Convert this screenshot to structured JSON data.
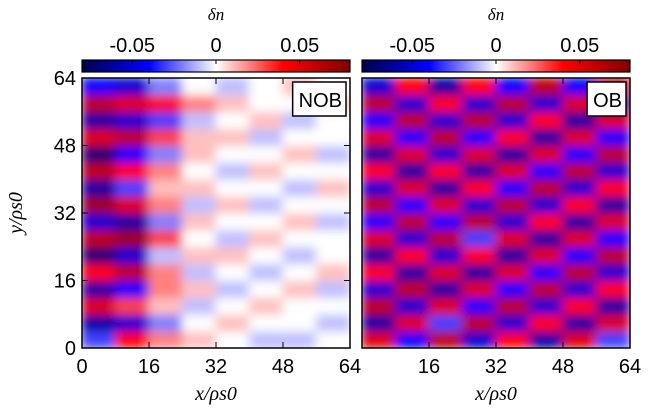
{
  "chart_data": [
    {
      "type": "heatmap",
      "label": "NOB",
      "xlabel": "x/ρs0",
      "ylabel": "y/ρs0",
      "xlim": [
        0,
        64
      ],
      "ylim": [
        0,
        64
      ],
      "xticks": [
        0,
        16,
        32,
        48,
        64
      ],
      "yticks": [
        0,
        16,
        32,
        48,
        64
      ],
      "colorbar": {
        "label": "δn",
        "clim": [
          -0.08,
          0.08
        ],
        "ticks": [
          -0.05,
          0,
          0.05
        ]
      },
      "colormap": [
        "#00004c",
        "#0000ff",
        "#ffffff",
        "#ff0000",
        "#800000"
      ],
      "z": [
        [
          -0.03,
          0.04,
          0.02,
          0.01,
          0.0,
          -0.01,
          -0.01,
          0.0
        ],
        [
          -0.06,
          -0.05,
          -0.02,
          0.0,
          0.01,
          0.0,
          0.0,
          -0.01
        ],
        [
          0.05,
          0.03,
          0.01,
          -0.01,
          0.0,
          0.01,
          0.0,
          0.0
        ],
        [
          -0.06,
          -0.04,
          0.02,
          0.01,
          -0.01,
          0.0,
          0.01,
          -0.01
        ],
        [
          0.04,
          0.06,
          0.02,
          -0.01,
          0.0,
          -0.01,
          0.0,
          0.01
        ],
        [
          -0.07,
          -0.05,
          -0.01,
          0.01,
          0.01,
          0.0,
          -0.01,
          0.0
        ],
        [
          0.06,
          0.07,
          0.03,
          0.0,
          -0.01,
          0.01,
          0.0,
          0.0
        ],
        [
          -0.05,
          -0.06,
          -0.02,
          0.01,
          0.0,
          0.0,
          0.01,
          -0.01
        ],
        [
          0.07,
          0.05,
          0.02,
          -0.01,
          0.01,
          -0.01,
          0.0,
          0.0
        ],
        [
          -0.06,
          -0.03,
          0.01,
          0.01,
          0.0,
          0.0,
          -0.01,
          0.01
        ],
        [
          0.06,
          0.04,
          0.02,
          0.0,
          -0.01,
          0.01,
          0.0,
          0.0
        ],
        [
          -0.07,
          -0.04,
          -0.02,
          0.01,
          0.0,
          0.0,
          0.01,
          -0.01
        ],
        [
          0.05,
          0.06,
          0.03,
          0.01,
          0.01,
          -0.01,
          0.0,
          0.0
        ],
        [
          -0.06,
          -0.05,
          -0.03,
          -0.01,
          0.0,
          0.01,
          -0.01,
          0.0
        ],
        [
          0.06,
          0.05,
          0.04,
          0.02,
          0.01,
          0.0,
          0.0,
          0.01
        ],
        [
          -0.04,
          -0.05,
          -0.02,
          0.0,
          -0.01,
          0.0,
          0.01,
          0.0
        ]
      ]
    },
    {
      "type": "heatmap",
      "label": "OB",
      "xlabel": "x/ρs0",
      "xlim": [
        0,
        64
      ],
      "ylim": [
        0,
        64
      ],
      "xticks": [
        16,
        32,
        48,
        64
      ],
      "colorbar": {
        "label": "δn",
        "clim": [
          -0.08,
          0.08
        ],
        "ticks": [
          -0.05,
          0,
          0.05
        ]
      },
      "colormap": [
        "#00004c",
        "#0000ff",
        "#ffffff",
        "#ff0000",
        "#800000"
      ],
      "z": [
        [
          0.05,
          -0.04,
          0.06,
          -0.05,
          0.04,
          -0.06,
          0.05,
          -0.03
        ],
        [
          -0.06,
          0.05,
          -0.03,
          0.06,
          -0.05,
          0.04,
          -0.06,
          0.05
        ],
        [
          0.06,
          -0.05,
          0.05,
          -0.04,
          0.06,
          -0.05,
          0.04,
          -0.06
        ],
        [
          -0.05,
          0.06,
          -0.06,
          0.05,
          -0.04,
          0.06,
          -0.05,
          0.04
        ],
        [
          0.04,
          -0.06,
          0.05,
          -0.06,
          0.05,
          -0.04,
          0.06,
          -0.05
        ],
        [
          -0.06,
          0.04,
          -0.05,
          0.04,
          -0.06,
          0.05,
          -0.04,
          0.06
        ],
        [
          0.05,
          -0.05,
          0.06,
          -0.03,
          0.05,
          -0.06,
          0.05,
          -0.04
        ],
        [
          -0.04,
          0.06,
          -0.04,
          0.06,
          -0.05,
          0.04,
          -0.06,
          0.05
        ],
        [
          0.06,
          -0.04,
          0.05,
          -0.05,
          0.06,
          -0.05,
          0.04,
          -0.06
        ],
        [
          -0.05,
          0.05,
          -0.06,
          0.04,
          -0.04,
          0.06,
          -0.05,
          0.04
        ],
        [
          0.04,
          -0.06,
          0.04,
          -0.06,
          0.05,
          -0.04,
          0.06,
          -0.05
        ],
        [
          -0.06,
          0.05,
          -0.05,
          0.05,
          -0.06,
          0.05,
          -0.04,
          0.06
        ],
        [
          0.05,
          -0.04,
          0.06,
          -0.04,
          0.04,
          -0.06,
          0.05,
          -0.04
        ],
        [
          -0.04,
          0.06,
          -0.05,
          0.06,
          -0.05,
          0.04,
          -0.06,
          0.05
        ],
        [
          0.06,
          -0.05,
          0.04,
          -0.05,
          0.06,
          -0.05,
          0.05,
          -0.06
        ],
        [
          -0.05,
          0.04,
          -0.06,
          0.04,
          -0.04,
          0.06,
          -0.04,
          0.05
        ]
      ]
    }
  ]
}
